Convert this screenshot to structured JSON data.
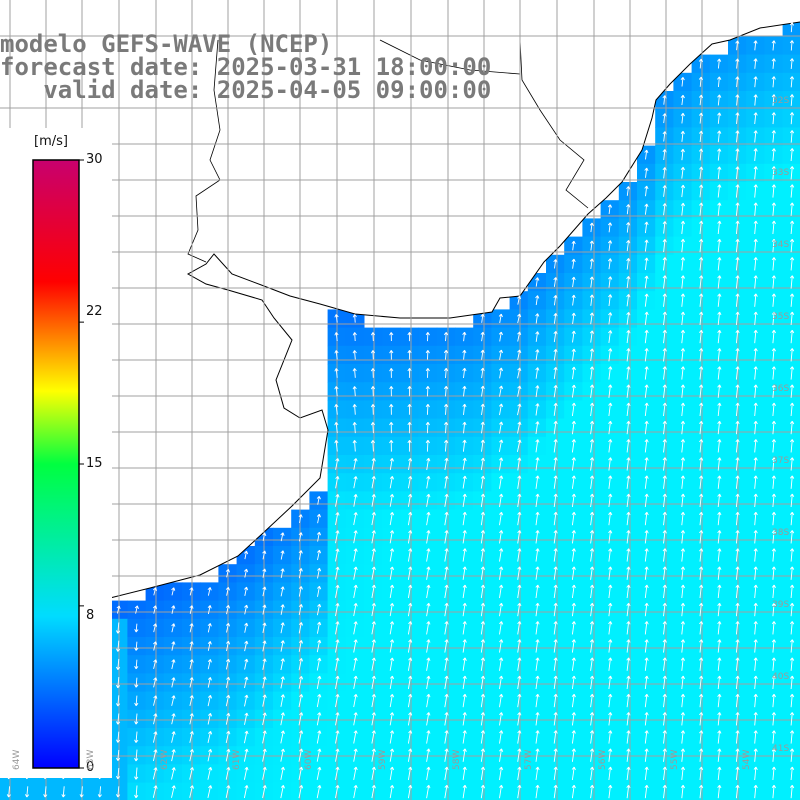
{
  "title": {
    "line1": "modelo GEFS-WAVE (NCEP)",
    "line2": "forecast date: 2025-03-31 18:00:00",
    "line3": "   valid date: 2025-04-05 09:00:00"
  },
  "colorbar": {
    "unit": "[m/s]",
    "ticks": [
      "30",
      "22",
      "15",
      "8",
      "0"
    ],
    "tick_values": [
      30,
      22,
      15,
      8,
      0
    ],
    "range": [
      0,
      30
    ],
    "colors": [
      "#0000ff",
      "#00c8ff",
      "#00ff40",
      "#ffff00",
      "#ff0000",
      "#c8006e"
    ]
  },
  "map": {
    "variable": "wind speed and direction",
    "land_color": "#ffffff",
    "coast_color": "#000000",
    "grid_color": "#a0a0a0",
    "lat_labels": [
      "32S",
      "33S",
      "34S",
      "35S",
      "36S",
      "37S",
      "38S",
      "39S",
      "40S",
      "41S"
    ],
    "lon_labels": [
      "64W",
      "63W",
      "62W",
      "61W",
      "60W",
      "59W",
      "58W",
      "57W",
      "56W",
      "55W",
      "54W"
    ]
  }
}
